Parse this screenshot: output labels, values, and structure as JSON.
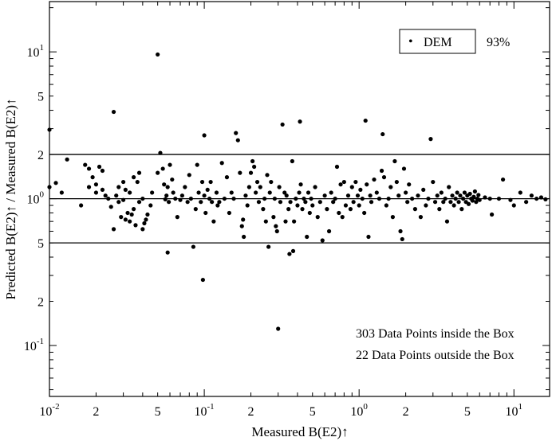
{
  "chart_data": {
    "type": "scatter",
    "xlabel": "Measured B(E2)↑",
    "ylabel": "Predicted B(E2)↑ / Measured B(E2)↑",
    "x_scale": "log",
    "y_scale": "log",
    "xlim": [
      0.01,
      17
    ],
    "ylim": [
      0.045,
      22
    ],
    "x_ticks": [
      {
        "value": 0.01,
        "base": "10",
        "exp": "-2"
      },
      {
        "value": 0.02,
        "label": "2"
      },
      {
        "value": 0.05,
        "label": "5"
      },
      {
        "value": 0.1,
        "base": "10",
        "exp": "-1"
      },
      {
        "value": 0.2,
        "label": "2"
      },
      {
        "value": 0.5,
        "label": "5"
      },
      {
        "value": 1,
        "base": "10",
        "exp": "0"
      },
      {
        "value": 2,
        "label": "2"
      },
      {
        "value": 5,
        "label": "5"
      },
      {
        "value": 10,
        "base": "10",
        "exp": "1"
      }
    ],
    "y_ticks": [
      {
        "value": 10,
        "base": "10",
        "exp": "1"
      },
      {
        "value": 5,
        "label": "5"
      },
      {
        "value": 2,
        "label": "2"
      },
      {
        "value": 1,
        "base": "10",
        "exp": "0"
      },
      {
        "value": 0.5,
        "label": "5"
      },
      {
        "value": 0.2,
        "label": "2"
      },
      {
        "value": 0.1,
        "base": "10",
        "exp": "-1"
      }
    ],
    "reference_lines": [
      2,
      1,
      0.5
    ],
    "legend": {
      "marker": "•",
      "series_name": "DEM",
      "value": "93%",
      "position": "top-right"
    },
    "annotations": [
      "303 Data Points inside the Box",
      "22 Data Points outside the Box"
    ],
    "series": [
      {
        "name": "DEM",
        "points": [
          [
            0.01,
            2.95
          ],
          [
            0.01,
            1.2
          ],
          [
            0.011,
            1.28
          ],
          [
            0.012,
            1.1
          ],
          [
            0.013,
            1.85
          ],
          [
            0.016,
            0.9
          ],
          [
            0.017,
            1.7
          ],
          [
            0.018,
            1.2
          ],
          [
            0.018,
            1.6
          ],
          [
            0.019,
            1.4
          ],
          [
            0.02,
            1.25
          ],
          [
            0.02,
            1.1
          ],
          [
            0.021,
            1.65
          ],
          [
            0.022,
            1.55
          ],
          [
            0.022,
            1.15
          ],
          [
            0.023,
            1.05
          ],
          [
            0.024,
            1.0
          ],
          [
            0.025,
            0.88
          ],
          [
            0.026,
            3.9
          ],
          [
            0.026,
            0.62
          ],
          [
            0.027,
            1.05
          ],
          [
            0.028,
            1.2
          ],
          [
            0.028,
            0.95
          ],
          [
            0.029,
            0.75
          ],
          [
            0.03,
            1.3
          ],
          [
            0.03,
            0.98
          ],
          [
            0.031,
            0.72
          ],
          [
            0.031,
            1.15
          ],
          [
            0.032,
            0.8
          ],
          [
            0.033,
            1.1
          ],
          [
            0.033,
            0.7
          ],
          [
            0.034,
            0.78
          ],
          [
            0.035,
            0.85
          ],
          [
            0.035,
            1.4
          ],
          [
            0.036,
            0.66
          ],
          [
            0.037,
            1.3
          ],
          [
            0.038,
            1.5
          ],
          [
            0.038,
            0.95
          ],
          [
            0.04,
            0.62
          ],
          [
            0.04,
            1.0
          ],
          [
            0.041,
            0.68
          ],
          [
            0.042,
            0.72
          ],
          [
            0.043,
            0.78
          ],
          [
            0.045,
            0.9
          ],
          [
            0.046,
            1.1
          ],
          [
            0.05,
            9.6
          ],
          [
            0.05,
            1.5
          ],
          [
            0.052,
            2.05
          ],
          [
            0.054,
            1.6
          ],
          [
            0.055,
            1.25
          ],
          [
            0.056,
            0.99
          ],
          [
            0.057,
            1.05
          ],
          [
            0.058,
            1.2
          ],
          [
            0.058,
            0.43
          ],
          [
            0.059,
            0.95
          ],
          [
            0.06,
            1.7
          ],
          [
            0.062,
            1.35
          ],
          [
            0.063,
            1.1
          ],
          [
            0.065,
            1.0
          ],
          [
            0.067,
            0.75
          ],
          [
            0.07,
            0.98
          ],
          [
            0.072,
            1.05
          ],
          [
            0.075,
            1.2
          ],
          [
            0.078,
            0.95
          ],
          [
            0.08,
            1.45
          ],
          [
            0.082,
            1.0
          ],
          [
            0.085,
            0.47
          ],
          [
            0.088,
            0.85
          ],
          [
            0.09,
            1.7
          ],
          [
            0.092,
            1.1
          ],
          [
            0.095,
            0.95
          ],
          [
            0.097,
            1.3
          ],
          [
            0.098,
            0.28
          ],
          [
            0.1,
            2.7
          ],
          [
            0.1,
            1.05
          ],
          [
            0.102,
            0.8
          ],
          [
            0.105,
            1.15
          ],
          [
            0.108,
            1.0
          ],
          [
            0.11,
            1.3
          ],
          [
            0.112,
            0.95
          ],
          [
            0.115,
            0.7
          ],
          [
            0.12,
            1.1
          ],
          [
            0.122,
            0.9
          ],
          [
            0.125,
            0.95
          ],
          [
            0.13,
            1.75
          ],
          [
            0.135,
            1.0
          ],
          [
            0.14,
            1.4
          ],
          [
            0.145,
            0.8
          ],
          [
            0.15,
            1.1
          ],
          [
            0.155,
            1.0
          ],
          [
            0.16,
            2.8
          ],
          [
            0.165,
            2.5
          ],
          [
            0.17,
            1.5
          ],
          [
            0.175,
            0.65
          ],
          [
            0.178,
            0.72
          ],
          [
            0.18,
            0.55
          ],
          [
            0.185,
            1.05
          ],
          [
            0.19,
            0.9
          ],
          [
            0.195,
            1.2
          ],
          [
            0.2,
            1.5
          ],
          [
            0.205,
            1.8
          ],
          [
            0.21,
            1.65
          ],
          [
            0.215,
            1.1
          ],
          [
            0.22,
            1.3
          ],
          [
            0.225,
            0.95
          ],
          [
            0.23,
            1.2
          ],
          [
            0.24,
            0.85
          ],
          [
            0.245,
            1.0
          ],
          [
            0.25,
            0.7
          ],
          [
            0.255,
            1.45
          ],
          [
            0.26,
            0.47
          ],
          [
            0.265,
            1.1
          ],
          [
            0.27,
            1.3
          ],
          [
            0.28,
            0.75
          ],
          [
            0.285,
            1.0
          ],
          [
            0.29,
            0.65
          ],
          [
            0.295,
            0.6
          ],
          [
            0.3,
            0.13
          ],
          [
            0.305,
            1.2
          ],
          [
            0.31,
            0.95
          ],
          [
            0.32,
            3.2
          ],
          [
            0.33,
            1.1
          ],
          [
            0.335,
            0.7
          ],
          [
            0.34,
            1.05
          ],
          [
            0.35,
            0.85
          ],
          [
            0.355,
            0.42
          ],
          [
            0.36,
            0.95
          ],
          [
            0.37,
            1.8
          ],
          [
            0.375,
            0.44
          ],
          [
            0.38,
            0.7
          ],
          [
            0.39,
            1.0
          ],
          [
            0.4,
            0.9
          ],
          [
            0.41,
            1.1
          ],
          [
            0.415,
            3.35
          ],
          [
            0.42,
            1.25
          ],
          [
            0.43,
            0.85
          ],
          [
            0.44,
            1.0
          ],
          [
            0.45,
            0.95
          ],
          [
            0.46,
            0.55
          ],
          [
            0.47,
            1.1
          ],
          [
            0.48,
            0.8
          ],
          [
            0.49,
            1.0
          ],
          [
            0.5,
            0.9
          ],
          [
            0.52,
            1.2
          ],
          [
            0.54,
            0.75
          ],
          [
            0.56,
            0.95
          ],
          [
            0.58,
            0.52
          ],
          [
            0.6,
            1.05
          ],
          [
            0.62,
            0.85
          ],
          [
            0.64,
            0.6
          ],
          [
            0.66,
            1.1
          ],
          [
            0.68,
            0.95
          ],
          [
            0.7,
            1.0
          ],
          [
            0.72,
            1.65
          ],
          [
            0.74,
            0.8
          ],
          [
            0.76,
            1.25
          ],
          [
            0.78,
            0.75
          ],
          [
            0.8,
            1.3
          ],
          [
            0.82,
            0.9
          ],
          [
            0.85,
            1.05
          ],
          [
            0.88,
            0.85
          ],
          [
            0.9,
            1.2
          ],
          [
            0.92,
            0.95
          ],
          [
            0.95,
            1.3
          ],
          [
            0.98,
            1.05
          ],
          [
            1.0,
            0.9
          ],
          [
            1.02,
            1.15
          ],
          [
            1.05,
            1.0
          ],
          [
            1.08,
            0.8
          ],
          [
            1.1,
            3.4
          ],
          [
            1.12,
            1.25
          ],
          [
            1.15,
            0.55
          ],
          [
            1.18,
            1.05
          ],
          [
            1.2,
            0.95
          ],
          [
            1.25,
            1.35
          ],
          [
            1.3,
            1.1
          ],
          [
            1.35,
            1.0
          ],
          [
            1.4,
            1.55
          ],
          [
            1.42,
            2.75
          ],
          [
            1.45,
            1.4
          ],
          [
            1.5,
            0.9
          ],
          [
            1.55,
            1.0
          ],
          [
            1.6,
            1.2
          ],
          [
            1.65,
            0.75
          ],
          [
            1.7,
            1.8
          ],
          [
            1.75,
            1.3
          ],
          [
            1.8,
            1.05
          ],
          [
            1.85,
            0.6
          ],
          [
            1.9,
            0.53
          ],
          [
            1.95,
            1.6
          ],
          [
            2.0,
            1.1
          ],
          [
            2.05,
            0.95
          ],
          [
            2.1,
            1.25
          ],
          [
            2.2,
            1.0
          ],
          [
            2.3,
            0.85
          ],
          [
            2.4,
            1.05
          ],
          [
            2.5,
            0.75
          ],
          [
            2.6,
            1.15
          ],
          [
            2.7,
            0.9
          ],
          [
            2.8,
            1.0
          ],
          [
            2.9,
            2.55
          ],
          [
            3.0,
            1.3
          ],
          [
            3.1,
            0.95
          ],
          [
            3.2,
            1.05
          ],
          [
            3.3,
            0.85
          ],
          [
            3.4,
            1.1
          ],
          [
            3.5,
            0.95
          ],
          [
            3.6,
            1.0
          ],
          [
            3.7,
            0.7
          ],
          [
            3.8,
            1.2
          ],
          [
            3.9,
            0.95
          ],
          [
            4.0,
            1.05
          ],
          [
            4.1,
            0.9
          ],
          [
            4.2,
            1.0
          ],
          [
            4.3,
            1.1
          ],
          [
            4.4,
            0.95
          ],
          [
            4.5,
            1.05
          ],
          [
            4.6,
            0.85
          ],
          [
            4.7,
            1.0
          ],
          [
            4.8,
            1.1
          ],
          [
            4.9,
            0.95
          ],
          [
            5.0,
            1.05
          ],
          [
            5.1,
            0.92
          ],
          [
            5.2,
            1.08
          ],
          [
            5.3,
            1.0
          ],
          [
            5.4,
            0.97
          ],
          [
            5.5,
            1.03
          ],
          [
            5.6,
            1.12
          ],
          [
            5.7,
            0.95
          ],
          [
            5.8,
            1.0
          ],
          [
            5.9,
            1.06
          ],
          [
            6.0,
            0.98
          ],
          [
            6.5,
            1.02
          ],
          [
            7.0,
            1.0
          ],
          [
            7.2,
            0.78
          ],
          [
            8.0,
            1.0
          ],
          [
            8.5,
            1.35
          ],
          [
            9.5,
            0.98
          ],
          [
            10.0,
            0.9
          ],
          [
            11.0,
            1.1
          ],
          [
            12.0,
            0.95
          ],
          [
            13.0,
            1.05
          ],
          [
            14.0,
            1.0
          ],
          [
            15.0,
            1.02
          ],
          [
            16.0,
            0.99
          ]
        ]
      }
    ]
  }
}
